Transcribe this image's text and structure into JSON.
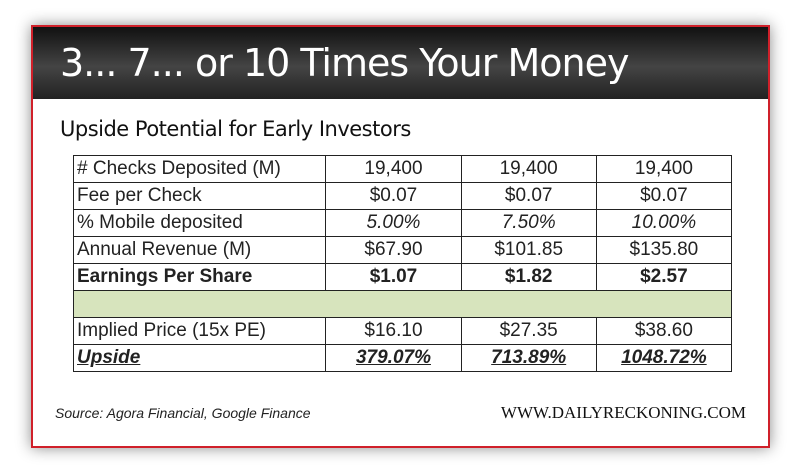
{
  "title": "3... 7... or 10 Times Your Money",
  "subtitle": "Upside Potential for Early Investors",
  "rows": [
    {
      "label": "# Checks Deposited (M)",
      "values": [
        "19,400",
        "19,400",
        "19,400"
      ]
    },
    {
      "label": "Fee per Check",
      "values": [
        "$0.07",
        "$0.07",
        "$0.07"
      ]
    },
    {
      "label": "% Mobile deposited",
      "values": [
        "5.00%",
        "7.50%",
        "10.00%"
      ]
    },
    {
      "label": "Annual Revenue (M)",
      "values": [
        "$67.90",
        "$101.85",
        "$135.80"
      ]
    },
    {
      "label": "Earnings Per Share",
      "values": [
        "$1.07",
        "$1.82",
        "$2.57"
      ]
    },
    {
      "label": "Implied Price (15x PE)",
      "values": [
        "$16.10",
        "$27.35",
        "$38.60"
      ]
    },
    {
      "label": "Upside",
      "values": [
        "379.07%",
        "713.89%",
        "1048.72%"
      ]
    }
  ],
  "source": "Source: Agora Financial, Google Finance",
  "site": "WWW.DAILYRECKONING.COM",
  "colors": {
    "border": "#d0202a",
    "spacer": "#d7e4bd"
  }
}
